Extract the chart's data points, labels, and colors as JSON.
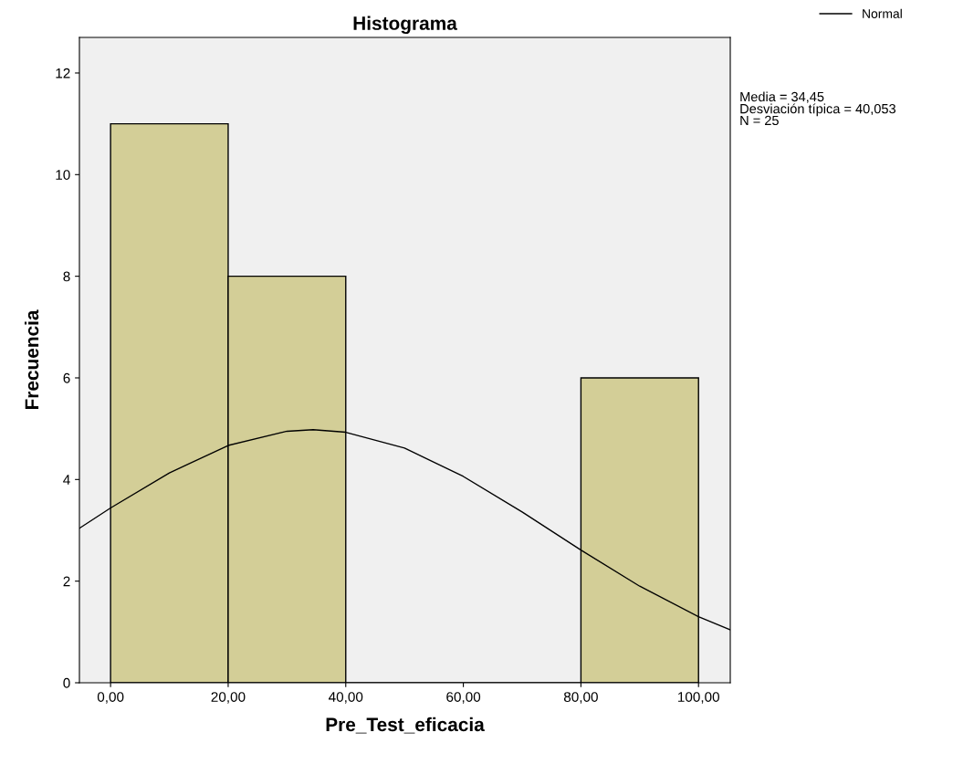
{
  "chart_data": {
    "type": "histogram",
    "title": "Histograma",
    "xlabel": "Pre_Test_eficacia",
    "ylabel": "Frecuencia",
    "bins": [
      0,
      20,
      40,
      60,
      80,
      100
    ],
    "values": [
      11,
      8,
      0,
      0,
      6
    ],
    "color": "#d3ce97",
    "series": [
      {
        "name": "Normal",
        "type": "line",
        "color": "#000000",
        "x": [
          -5.3,
          0,
          10,
          20,
          30,
          34.45,
          40,
          50,
          60,
          70,
          80,
          90,
          100,
          105.4
        ],
        "values": [
          3.04,
          3.44,
          4.13,
          4.67,
          4.95,
          4.98,
          4.93,
          4.62,
          4.06,
          3.36,
          2.61,
          1.9,
          1.3,
          1.04
        ]
      }
    ],
    "xlim": [
      -5.3,
      105.4
    ],
    "ylim": [
      0,
      12.7
    ],
    "xticks": [
      {
        "value": 0,
        "label": "0,00"
      },
      {
        "value": 20,
        "label": "20,00"
      },
      {
        "value": 40,
        "label": "40,00"
      },
      {
        "value": 60,
        "label": "60,00"
      },
      {
        "value": 80,
        "label": "80,00"
      },
      {
        "value": 100,
        "label": "100,00"
      }
    ],
    "yticks": [
      0,
      2,
      4,
      6,
      8,
      10,
      12
    ],
    "annotations": [
      "Media = 34,45",
      "Desviación típica = 40,053",
      "N = 25"
    ],
    "legend": "top right",
    "grid": false,
    "marker": "none",
    "line_style": "solid"
  }
}
